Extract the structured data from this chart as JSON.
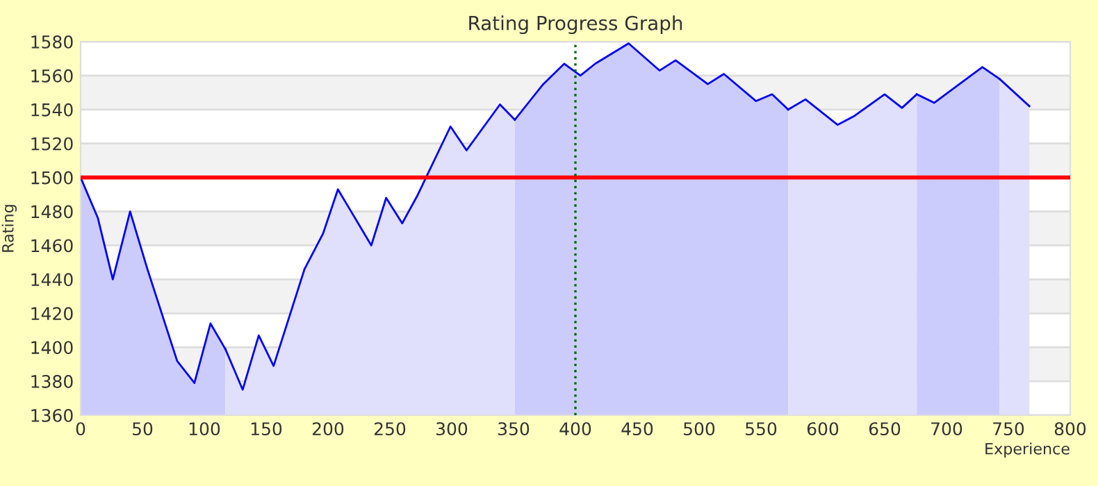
{
  "chart_data": {
    "type": "area",
    "title": "Rating Progress Graph",
    "xlabel": "Experience",
    "ylabel": "Rating",
    "xlim": [
      0,
      800
    ],
    "xticks": [
      0,
      50,
      100,
      150,
      200,
      250,
      300,
      350,
      400,
      450,
      500,
      550,
      600,
      650,
      700,
      750,
      800
    ],
    "ylim": [
      1360,
      1580
    ],
    "yticks": [
      1360,
      1380,
      1400,
      1420,
      1440,
      1460,
      1480,
      1500,
      1520,
      1540,
      1560,
      1580
    ],
    "grid": "y",
    "legend": false,
    "series": [
      {
        "color": "#ccccfc",
        "x": [
          0,
          14,
          26,
          40,
          54,
          78,
          92,
          105,
          117
        ],
        "values": [
          1500,
          1476,
          1440,
          1480,
          1446,
          1392,
          1379,
          1414,
          1399
        ]
      },
      {
        "color": "#e0e0fc",
        "x": [
          117,
          131,
          144,
          156,
          181,
          196,
          208,
          235,
          247,
          260,
          272,
          299,
          312,
          339,
          351
        ],
        "values": [
          1399,
          1375,
          1407,
          1389,
          1446,
          1467,
          1493,
          1460,
          1488,
          1473,
          1489,
          1530,
          1516,
          1543,
          1534
        ]
      },
      {
        "color": "#ccccfc",
        "x": [
          351,
          374,
          391,
          404,
          416,
          443,
          468,
          481,
          507,
          520,
          546,
          559,
          572
        ],
        "values": [
          1534,
          1555,
          1567,
          1560,
          1567,
          1579,
          1563,
          1569,
          1555,
          1561,
          1545,
          1549,
          1540
        ]
      },
      {
        "color": "#e0e0fc",
        "x": [
          572,
          586,
          612,
          625,
          650,
          664,
          676
        ],
        "values": [
          1540,
          1546,
          1531,
          1536,
          1549,
          1541,
          1549
        ]
      },
      {
        "color": "#ccccfc",
        "x": [
          676,
          690,
          729,
          743
        ],
        "values": [
          1549,
          1544,
          1565,
          1558
        ]
      },
      {
        "color": "#e0e0fc",
        "x": [
          743,
          767
        ],
        "values": [
          1558,
          1542
        ]
      }
    ],
    "ref_lines": [
      {
        "axis": "y",
        "value": 1500,
        "color": "#ff0000",
        "line_style": "solid"
      },
      {
        "axis": "x",
        "value": 400,
        "color": "#006600",
        "line_style": "dotted"
      }
    ]
  }
}
